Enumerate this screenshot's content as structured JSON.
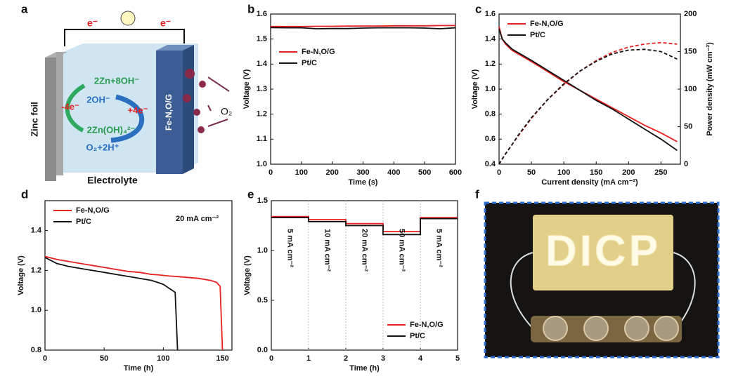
{
  "panel_labels": [
    "a",
    "b",
    "c",
    "d",
    "e",
    "f"
  ],
  "diagram": {
    "electron_left": "e⁻",
    "electron_right": "e⁻",
    "anode": "Zinc foil",
    "anode_electrons": "-4e⁻",
    "anode_reactant": "2Zn+8OH⁻",
    "hydroxide": "2OH⁻",
    "cathode_electrons": "+4e⁻",
    "anode_product": "2Zn(OH)₄²⁻",
    "cathode_reactant": "O₂+2H⁺",
    "oxygen": "O₂",
    "cathode": "Fe-N,O/G",
    "electrolyte": "Electrolyte"
  },
  "photo": {
    "sign_text": "DICP"
  },
  "chart_data": [
    {
      "type": "line",
      "xlabel": "Time (s)",
      "ylabel": "Voltage (V)",
      "legend": "center left",
      "x": [
        0,
        50,
        100,
        150,
        200,
        250,
        300,
        350,
        400,
        450,
        500,
        550,
        600
      ],
      "series": [
        {
          "name": "Fe-N,O/G",
          "color": "#e8201f",
          "values": [
            1.55,
            1.55,
            1.55,
            1.551,
            1.551,
            1.552,
            1.552,
            1.552,
            1.553,
            1.553,
            1.553,
            1.554,
            1.554
          ]
        },
        {
          "name": "Pt/C",
          "color": "#111111",
          "values": [
            1.546,
            1.545,
            1.545,
            1.541,
            1.542,
            1.542,
            1.544,
            1.545,
            1.545,
            1.545,
            1.544,
            1.541,
            1.545
          ]
        }
      ],
      "xlim": [
        0,
        600
      ],
      "xticks": [
        0,
        100,
        200,
        300,
        400,
        500,
        600
      ],
      "ylim": [
        1.0,
        1.6
      ],
      "yticks": [
        {
          "value": 1.0,
          "label": "1.0"
        },
        1.1,
        1.2,
        1.3,
        1.4,
        1.5,
        1.6
      ]
    },
    {
      "type": "line",
      "xlabel": "Current density (mA cm⁻²)",
      "ylabel": "Voltage (V)",
      "y2label": "Power density (mW cm⁻²)",
      "legend": "upper left",
      "x": [
        0,
        5,
        10,
        20,
        30,
        50,
        75,
        100,
        125,
        150,
        175,
        200,
        225,
        250,
        275
      ],
      "series": [
        {
          "name": "Fe-N,O/G",
          "color": "#e8201f",
          "values": [
            1.5,
            1.4,
            1.36,
            1.31,
            1.28,
            1.22,
            1.14,
            1.06,
            0.99,
            0.92,
            0.85,
            0.78,
            0.71,
            0.65,
            0.58
          ]
        },
        {
          "name": "Pt/C",
          "color": "#111111",
          "values": [
            1.48,
            1.4,
            1.37,
            1.32,
            1.29,
            1.23,
            1.15,
            1.07,
            0.99,
            0.91,
            0.84,
            0.76,
            0.68,
            0.6,
            0.51
          ]
        },
        {
          "color": "#e8201f",
          "axis": "y2",
          "dashed": true,
          "values": [
            0,
            7,
            13.6,
            26,
            38,
            61,
            86,
            106,
            124,
            138,
            149,
            156,
            160,
            162,
            160
          ]
        },
        {
          "color": "#111111",
          "axis": "y2",
          "dashed": true,
          "values": [
            0,
            7,
            13.7,
            26,
            39,
            62,
            86,
            107,
            124,
            137,
            147,
            152,
            153,
            150,
            140
          ]
        }
      ],
      "xlim": [
        0,
        280
      ],
      "xticks": [
        0,
        50,
        100,
        150,
        200,
        250
      ],
      "ylim": [
        0.4,
        1.6
      ],
      "yticks": [
        0.4,
        0.6,
        0.8,
        {
          "value": 1.0,
          "label": "1.0"
        },
        1.2,
        1.4,
        1.6
      ],
      "y2lim": [
        0,
        200
      ],
      "y2ticks": [
        0,
        50,
        100,
        150,
        200
      ]
    },
    {
      "type": "line",
      "xlabel": "Time (h)",
      "ylabel": "Voltage (V)",
      "legend": "upper left",
      "annotation": "20 mA cm⁻²",
      "x": [
        0,
        10,
        20,
        30,
        40,
        50,
        60,
        70,
        80,
        90,
        95,
        100,
        105,
        110,
        112,
        120,
        130,
        140,
        145,
        148,
        150
      ],
      "series": [
        {
          "name": "Fe-N,O/G",
          "color": "#e8201f",
          "values": [
            1.27,
            1.255,
            1.245,
            1.235,
            1.225,
            1.215,
            1.205,
            1.195,
            1.19,
            1.18,
            1.178,
            1.175,
            1.172,
            1.17,
            1.169,
            1.165,
            1.16,
            1.15,
            1.14,
            1.12,
            0.8
          ]
        },
        {
          "name": "Pt/C",
          "color": "#111111",
          "values": [
            1.265,
            1.235,
            1.22,
            1.21,
            1.2,
            1.19,
            1.18,
            1.17,
            1.16,
            1.15,
            1.14,
            1.13,
            1.11,
            1.09,
            0.8,
            null,
            null,
            null,
            null,
            null,
            null
          ]
        }
      ],
      "xlim": [
        0,
        158
      ],
      "xticks": [
        0,
        50,
        100,
        150
      ],
      "ylim": [
        0.8,
        1.55
      ],
      "yticks": [
        0.8,
        {
          "value": 1.0,
          "label": "1.0"
        },
        1.2,
        1.4
      ]
    },
    {
      "type": "line",
      "xlabel": "Time (h)",
      "ylabel": "Voltage (V)",
      "legend": "lower right",
      "x_grid": true,
      "annotations": [
        "5 mA cm⁻²",
        "10 mA cm⁻²",
        "20 mA cm⁻²",
        "50 mA cm⁻²",
        "5 mA cm⁻²"
      ],
      "x": [
        0,
        1,
        1,
        2,
        2,
        3,
        3,
        4,
        4,
        5
      ],
      "series": [
        {
          "name": "Fe-N,O/G",
          "color": "#e8201f",
          "values": [
            1.34,
            1.34,
            1.31,
            1.31,
            1.27,
            1.27,
            1.19,
            1.19,
            1.33,
            1.33
          ]
        },
        {
          "name": "Pt/C",
          "color": "#111111",
          "values": [
            1.33,
            1.33,
            1.29,
            1.29,
            1.25,
            1.25,
            1.16,
            1.16,
            1.32,
            1.32
          ]
        }
      ],
      "xlim": [
        0,
        5
      ],
      "xticks": [
        0,
        1,
        2,
        3,
        4,
        5
      ],
      "ylim": [
        0,
        1.5
      ],
      "yticks": [
        {
          "value": 0,
          "label": "0.0"
        },
        0.5,
        {
          "value": 1.0,
          "label": "1.0"
        },
        1.5
      ]
    }
  ]
}
